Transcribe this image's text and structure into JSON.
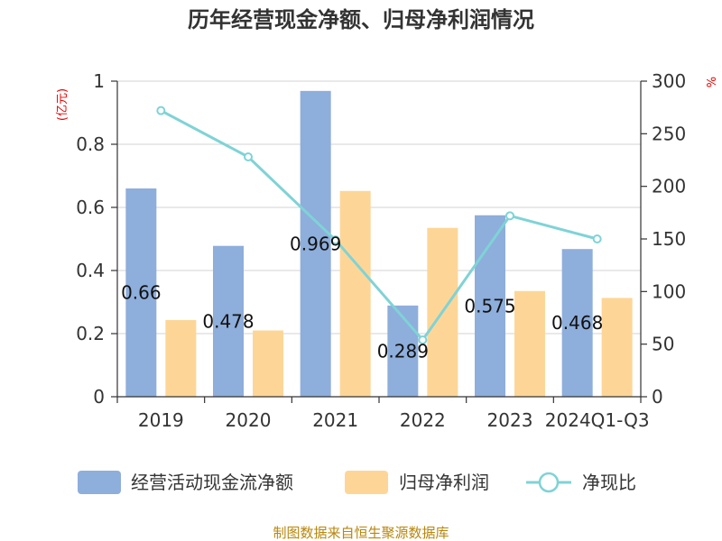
{
  "chart_data": {
    "type": "bar",
    "title": "历年经营现金净额、归母净利润情况",
    "categories": [
      "2019",
      "2020",
      "2021",
      "2022",
      "2023",
      "2024Q1-Q3"
    ],
    "series": [
      {
        "name": "经营活动现金流净额",
        "kind": "bar",
        "axis": "left",
        "color": "#8eaedb",
        "values": [
          0.66,
          0.478,
          0.969,
          0.289,
          0.575,
          0.468
        ],
        "labels": [
          "0.66",
          "0.478",
          "0.969",
          "0.289",
          "0.575",
          "0.468"
        ]
      },
      {
        "name": "归母净利润",
        "kind": "bar",
        "axis": "left",
        "color": "#fdd697",
        "values": [
          0.243,
          0.21,
          0.652,
          0.535,
          0.335,
          0.313
        ]
      },
      {
        "name": "净现比",
        "kind": "line",
        "axis": "right",
        "color": "#7fd3d6",
        "values": [
          272,
          228,
          149,
          54,
          172,
          150
        ]
      }
    ],
    "left_axis": {
      "unit": "(亿元)",
      "ylim": [
        0,
        1
      ],
      "ticks": [
        "0",
        "0.2",
        "0.4",
        "0.6",
        "0.8",
        "1"
      ]
    },
    "right_axis": {
      "unit": "%",
      "ylim": [
        0,
        300
      ],
      "ticks": [
        "0",
        "50",
        "100",
        "150",
        "200",
        "250",
        "300"
      ]
    },
    "grid": true,
    "legend_position": "bottom"
  },
  "source": "制图数据来自恒生聚源数据库"
}
